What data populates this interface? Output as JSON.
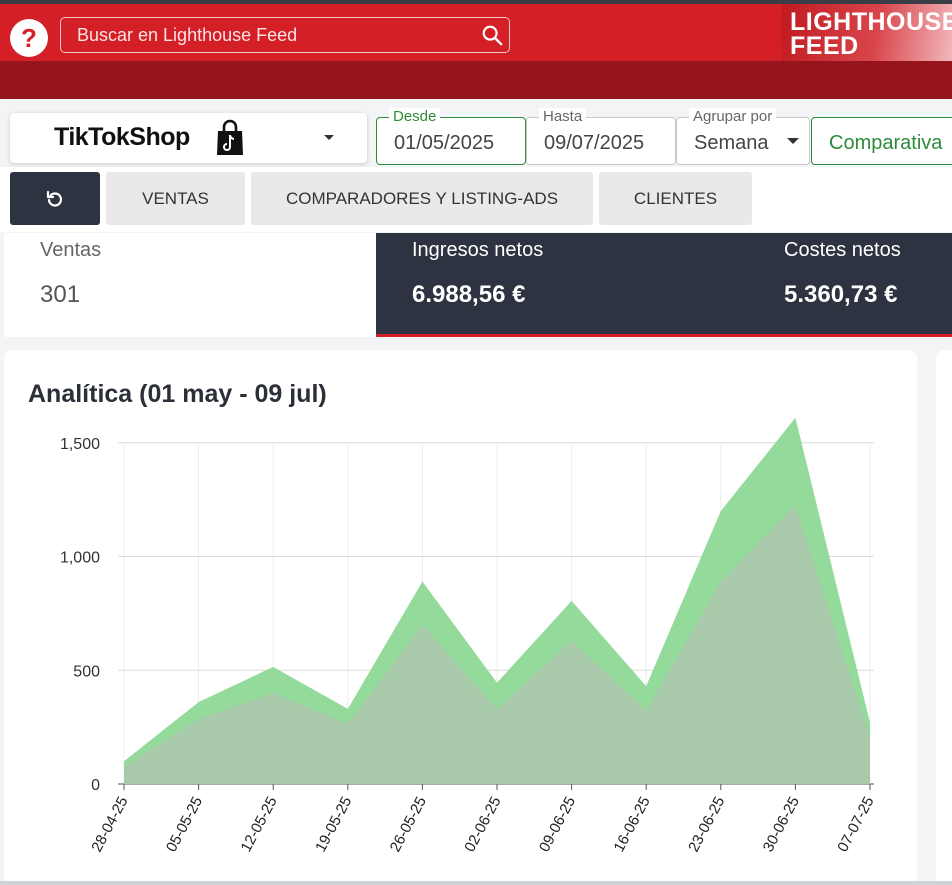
{
  "header": {
    "help_icon": "question-icon",
    "search_placeholder": "Buscar en Lighthouse Feed",
    "logo_line1": "LIGHTHOUSE",
    "logo_line2": "FEED",
    "colors": {
      "primary_red": "#d41f26",
      "dark_red": "#96141b",
      "dark_panel": "#2d3340",
      "accent_green": "#2e8b3a"
    }
  },
  "store": {
    "name_tiktok": "TikTok",
    "name_shop": "Shop",
    "icon": "tiktok-bag-icon"
  },
  "filters": {
    "desde_label": "Desde",
    "desde_value": "01/05/2025",
    "hasta_label": "Hasta",
    "hasta_value": "09/07/2025",
    "agrupar_label": "Agrupar por",
    "agrupar_value": "Semana",
    "comparativa_label": "Comparativa"
  },
  "tabs": [
    {
      "label": "",
      "icon": "refresh-icon"
    },
    {
      "label": "VENTAS"
    },
    {
      "label": "COMPARADORES Y LISTING-ADS"
    },
    {
      "label": "CLIENTES"
    }
  ],
  "kpis": {
    "ventas_label": "Ventas",
    "ventas_value": "301",
    "ingresos_label": "Ingresos netos",
    "ingresos_value": "6.988,56 €",
    "costes_label": "Costes netos",
    "costes_value": "5.360,73 €"
  },
  "chart_title": "Analítica (01 may - 09 jul)",
  "chart_data": {
    "type": "area",
    "x": [
      "28-04-25",
      "05-05-25",
      "12-05-25",
      "19-05-25",
      "26-05-25",
      "02-06-25",
      "09-06-25",
      "16-06-25",
      "23-06-25",
      "30-06-25",
      "07-07-25"
    ],
    "series": [
      {
        "values": [
          100,
          360,
          515,
          330,
          890,
          445,
          805,
          430,
          1200,
          1610,
          270
        ],
        "color": "#8ed895"
      },
      {
        "values": [
          75,
          285,
          400,
          265,
          700,
          330,
          630,
          325,
          890,
          1225,
          205
        ],
        "color": "#a9c9ab"
      }
    ],
    "ylim": [
      0,
      1600
    ],
    "yticks": [
      0,
      500,
      1000,
      1500
    ],
    "ytick_labels": [
      "0",
      "500",
      "1,000",
      "1,500"
    ],
    "grid": true
  }
}
